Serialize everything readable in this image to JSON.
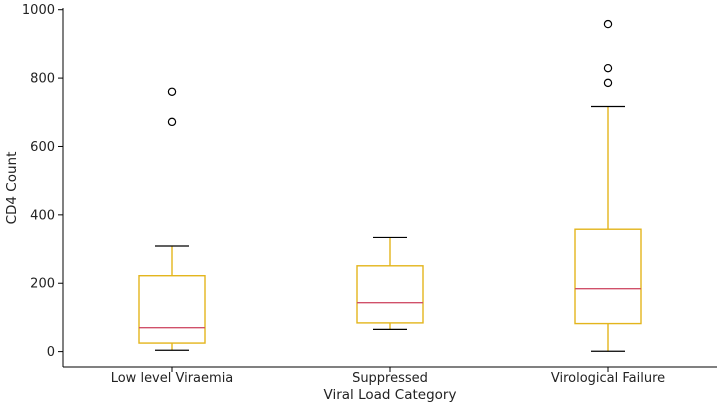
{
  "chart_data": {
    "type": "box",
    "title": "",
    "xlabel": "Viral Load Category",
    "ylabel": "CD4 Count",
    "ylim": [
      -45,
      1005
    ],
    "yticks": [
      0,
      200,
      400,
      600,
      800,
      1000
    ],
    "grid": false,
    "colors": {
      "box": "#e3b51c",
      "median": "#d0506a",
      "cap": "#000000",
      "flier": "#000000"
    },
    "boxes": [
      {
        "category": "Low level Viraemia",
        "whisker_low": 4,
        "q1": 25,
        "median": 70,
        "q3": 222,
        "whisker_high": 309,
        "outliers": [
          672,
          760
        ]
      },
      {
        "category": "Suppressed",
        "whisker_low": 65,
        "q1": 84,
        "median": 143,
        "q3": 251,
        "whisker_high": 334,
        "outliers": []
      },
      {
        "category": "Virological Failure",
        "whisker_low": 1,
        "q1": 82,
        "median": 184,
        "q3": 358,
        "whisker_high": 717,
        "outliers": [
          786,
          829,
          958
        ]
      }
    ]
  }
}
